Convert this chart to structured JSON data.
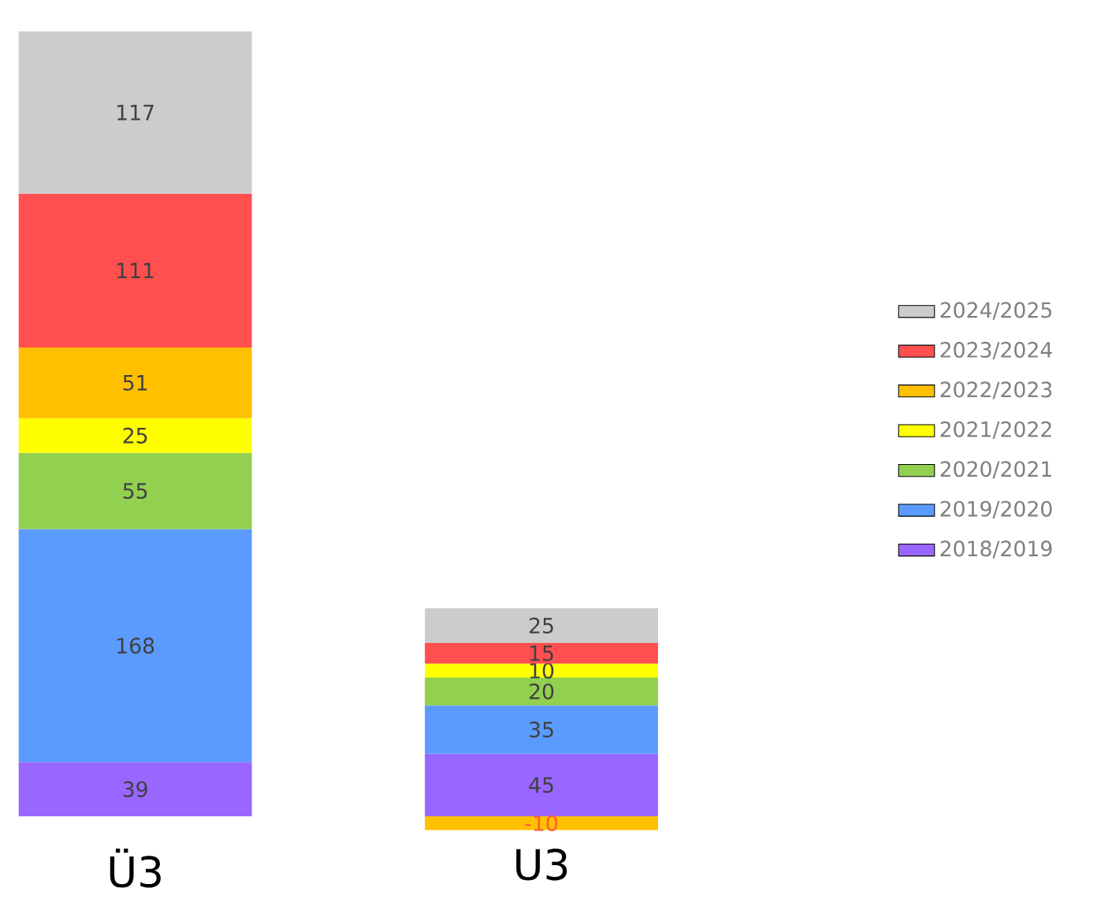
{
  "chart_data": {
    "type": "bar",
    "stacked": true,
    "data_labels": true,
    "legend": "right",
    "categories": [
      "Ü3",
      "U3"
    ],
    "series": [
      {
        "name": "2018/2019",
        "color": "#9966ff",
        "values": [
          39,
          45
        ]
      },
      {
        "name": "2019/2020",
        "color": "#5b9bff",
        "values": [
          168,
          35
        ]
      },
      {
        "name": "2020/2021",
        "color": "#92d050",
        "values": [
          55,
          20
        ]
      },
      {
        "name": "2021/2022",
        "color": "#ffff00",
        "values": [
          25,
          10
        ]
      },
      {
        "name": "2022/2023",
        "color": "#ffc000",
        "values": [
          51,
          -10
        ]
      },
      {
        "name": "2023/2024",
        "color": "#ff4f4f",
        "values": [
          111,
          15
        ]
      },
      {
        "name": "2024/2025",
        "color": "#cccccc",
        "values": [
          117,
          25
        ]
      }
    ]
  }
}
